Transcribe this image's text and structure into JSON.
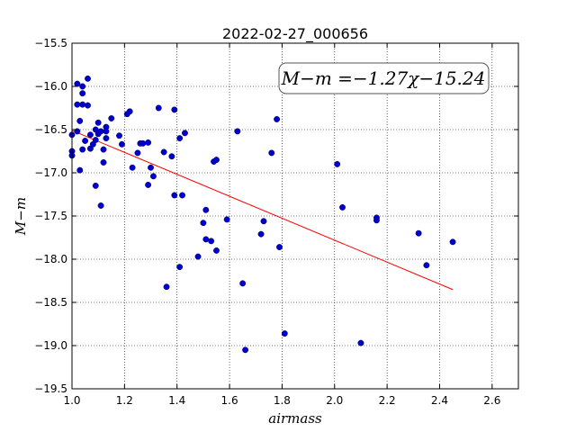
{
  "chart_data": {
    "type": "scatter",
    "title": "2022-02-27_000656",
    "xlabel": "airmass",
    "ylabel": "M−m",
    "xlim": [
      1.0,
      2.7
    ],
    "ylim": [
      -19.5,
      -15.5
    ],
    "y_inverted": false,
    "grid": true,
    "xticks": [
      "1.0",
      "1.2",
      "1.4",
      "1.6",
      "1.8",
      "2.0",
      "2.2",
      "2.4",
      "2.6"
    ],
    "yticks": [
      "−15.5",
      "−16.0",
      "−16.5",
      "−17.0",
      "−17.5",
      "−18.0",
      "−18.5",
      "−19.0",
      "−19.5"
    ],
    "annotation": "M−m =−1.27χ−15.24",
    "fit_line": {
      "slope": -1.27,
      "intercept": -15.24,
      "x_range": [
        1.0,
        2.45
      ],
      "color": "#ff0000"
    },
    "points_color": "#0000cc",
    "points": [
      [
        1.0,
        -16.56
      ],
      [
        1.0,
        -16.75
      ],
      [
        1.0,
        -16.8
      ],
      [
        1.02,
        -15.97
      ],
      [
        1.02,
        -16.21
      ],
      [
        1.02,
        -16.52
      ],
      [
        1.03,
        -16.4
      ],
      [
        1.03,
        -16.97
      ],
      [
        1.04,
        -16.0
      ],
      [
        1.04,
        -16.08
      ],
      [
        1.04,
        -16.21
      ],
      [
        1.04,
        -16.73
      ],
      [
        1.05,
        -16.63
      ],
      [
        1.06,
        -16.22
      ],
      [
        1.06,
        -15.91
      ],
      [
        1.07,
        -16.56
      ],
      [
        1.07,
        -16.72
      ],
      [
        1.08,
        -16.67
      ],
      [
        1.09,
        -16.5
      ],
      [
        1.09,
        -16.62
      ],
      [
        1.09,
        -17.15
      ],
      [
        1.1,
        -16.42
      ],
      [
        1.1,
        -16.55
      ],
      [
        1.11,
        -16.52
      ],
      [
        1.12,
        -16.73
      ],
      [
        1.12,
        -16.88
      ],
      [
        1.11,
        -17.38
      ],
      [
        1.13,
        -16.47
      ],
      [
        1.13,
        -16.52
      ],
      [
        1.13,
        -16.6
      ],
      [
        1.15,
        -16.37
      ],
      [
        1.18,
        -16.57
      ],
      [
        1.19,
        -16.67
      ],
      [
        1.21,
        -16.32
      ],
      [
        1.22,
        -16.29
      ],
      [
        1.23,
        -16.94
      ],
      [
        1.25,
        -16.77
      ],
      [
        1.26,
        -16.66
      ],
      [
        1.27,
        -16.66
      ],
      [
        1.29,
        -16.65
      ],
      [
        1.29,
        -17.14
      ],
      [
        1.3,
        -16.94
      ],
      [
        1.31,
        -17.04
      ],
      [
        1.33,
        -16.25
      ],
      [
        1.35,
        -16.76
      ],
      [
        1.36,
        -18.32
      ],
      [
        1.38,
        -16.81
      ],
      [
        1.39,
        -16.27
      ],
      [
        1.39,
        -17.26
      ],
      [
        1.41,
        -16.6
      ],
      [
        1.41,
        -18.09
      ],
      [
        1.42,
        -17.26
      ],
      [
        1.43,
        -16.54
      ],
      [
        1.48,
        -17.97
      ],
      [
        1.5,
        -17.58
      ],
      [
        1.51,
        -17.43
      ],
      [
        1.51,
        -17.77
      ],
      [
        1.53,
        -17.79
      ],
      [
        1.54,
        -16.87
      ],
      [
        1.55,
        -16.85
      ],
      [
        1.55,
        -17.9
      ],
      [
        1.59,
        -17.54
      ],
      [
        1.63,
        -16.52
      ],
      [
        1.65,
        -18.28
      ],
      [
        1.66,
        -19.05
      ],
      [
        1.72,
        -17.71
      ],
      [
        1.73,
        -17.56
      ],
      [
        1.76,
        -16.77
      ],
      [
        1.78,
        -16.38
      ],
      [
        1.79,
        -17.86
      ],
      [
        1.81,
        -18.86
      ],
      [
        2.01,
        -16.9
      ],
      [
        2.03,
        -17.4
      ],
      [
        2.1,
        -18.97
      ],
      [
        2.16,
        -17.52
      ],
      [
        2.16,
        -17.55
      ],
      [
        2.32,
        -17.7
      ],
      [
        2.35,
        -18.07
      ],
      [
        2.45,
        -17.8
      ]
    ]
  }
}
